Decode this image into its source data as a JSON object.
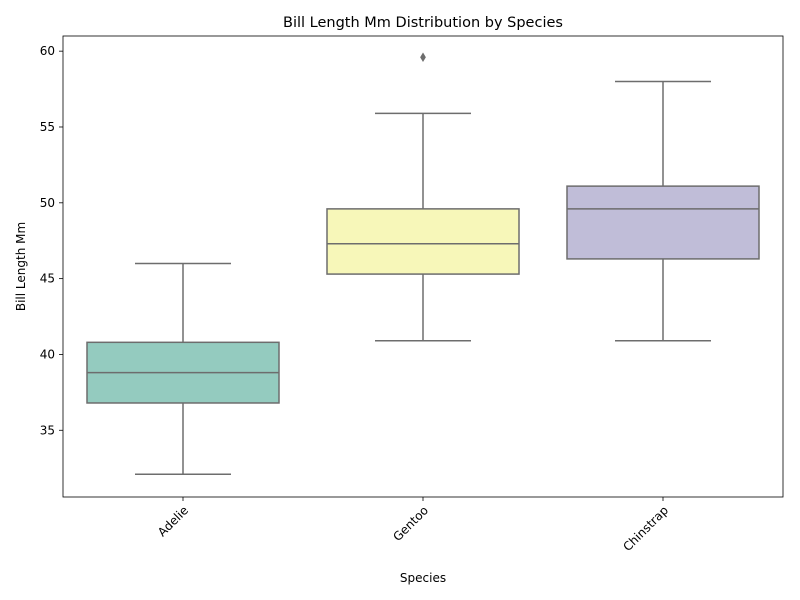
{
  "chart_data": {
    "type": "box",
    "title": "Bill Length Mm Distribution by Species",
    "xlabel": "Species",
    "ylabel": "Bill Length Mm",
    "ylim": [
      30.6,
      61.0
    ],
    "yticks": [
      35,
      40,
      45,
      50,
      55,
      60
    ],
    "categories": [
      "Adelie",
      "Gentoo",
      "Chinstrap"
    ],
    "colors": [
      "#94cbbf",
      "#f7f7b9",
      "#c0bdd8"
    ],
    "edge_color": "#6d6d6d",
    "series": [
      {
        "name": "Adelie",
        "whisker_low": 32.1,
        "q1": 36.8,
        "median": 38.8,
        "q3": 40.8,
        "whisker_high": 46.0,
        "outliers": []
      },
      {
        "name": "Gentoo",
        "whisker_low": 40.9,
        "q1": 45.3,
        "median": 47.3,
        "q3": 49.6,
        "whisker_high": 55.9,
        "outliers": [
          59.6
        ]
      },
      {
        "name": "Chinstrap",
        "whisker_low": 40.9,
        "q1": 46.3,
        "median": 49.6,
        "q3": 51.1,
        "whisker_high": 58.0,
        "outliers": []
      }
    ],
    "grid": false,
    "legend": "none"
  }
}
